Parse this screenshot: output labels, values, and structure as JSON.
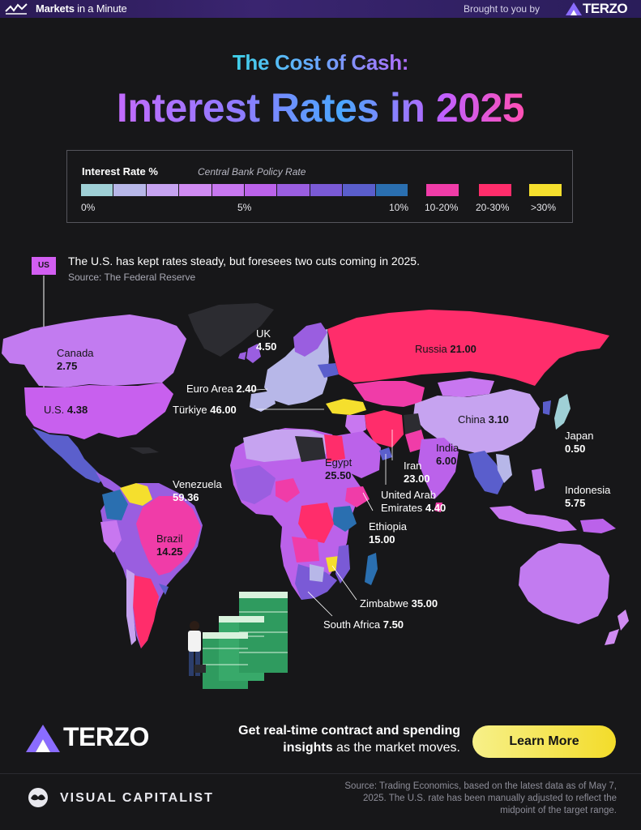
{
  "header": {
    "brand": "Markets",
    "brand_rest": " in a Minute",
    "brought_by": "Brought to you by",
    "sponsor": "TERZO"
  },
  "title": {
    "subtitle": "The Cost of Cash:",
    "main": "Interest Rates in 2025"
  },
  "legend": {
    "title": "Interest Rate %",
    "subtitle": "Central Bank Policy Rate",
    "scale_colors": [
      "#9fd0d6",
      "#b7b7e8",
      "#c6a3f0",
      "#d08bf2",
      "#c877f0",
      "#bb62ea",
      "#9a5ee0",
      "#7a5ad6",
      "#5a5ecc",
      "#2a6fb0"
    ],
    "ticks": [
      "0%",
      "5%",
      "10%"
    ],
    "buckets": [
      {
        "label": "10-20%",
        "color": "#f03ca8"
      },
      {
        "label": "20-30%",
        "color": "#ff2d6b"
      },
      {
        "label": ">30%",
        "color": "#f5df2d"
      }
    ]
  },
  "us_note": {
    "tag": "US",
    "text": "The U.S. has kept rates steady, but foresees two cuts coming in 2025.",
    "source": "Source: The Federal Reserve"
  },
  "map_labels": [
    {
      "id": "canada",
      "name": "Canada",
      "value": "2.75"
    },
    {
      "id": "us",
      "name": "U.S.",
      "value": "4.38"
    },
    {
      "id": "uk",
      "name": "UK",
      "value": "4.50"
    },
    {
      "id": "euro",
      "name": "Euro Area",
      "value": "2.40"
    },
    {
      "id": "turkiye",
      "name": "Türkiye",
      "value": "46.00"
    },
    {
      "id": "russia",
      "name": "Russia",
      "value": "21.00"
    },
    {
      "id": "china",
      "name": "China",
      "value": "3.10"
    },
    {
      "id": "japan",
      "name": "Japan",
      "value": "0.50"
    },
    {
      "id": "india",
      "name": "India",
      "value": "6.00"
    },
    {
      "id": "iran",
      "name": "Iran",
      "value": "23.00"
    },
    {
      "id": "uae",
      "name": "United Arab Emirates",
      "value": "4.40"
    },
    {
      "id": "egypt",
      "name": "Egypt",
      "value": "25.50"
    },
    {
      "id": "ethiopia",
      "name": "Ethiopia",
      "value": "15.00"
    },
    {
      "id": "indonesia",
      "name": "Indonesia",
      "value": "5.75"
    },
    {
      "id": "venezuela",
      "name": "Venezuela",
      "value": "59.36"
    },
    {
      "id": "brazil",
      "name": "Brazil",
      "value": "14.25"
    },
    {
      "id": "zimbabwe",
      "name": "Zimbabwe",
      "value": "35.00"
    },
    {
      "id": "southafrica",
      "name": "South Africa",
      "value": "7.50"
    }
  ],
  "footer": {
    "sponsor": "TERZO",
    "cta_line1": "Get real-time contract and spending",
    "cta_bold": "insights",
    "cta_line2_rest": " as the market moves.",
    "button": "Learn More",
    "publisher": "VISUAL CAPITALIST",
    "source": "Source: Trading Economics, based on the latest data as of May 7, 2025. The U.S. rate has been manually adjusted to reflect the midpoint of the target range."
  }
}
